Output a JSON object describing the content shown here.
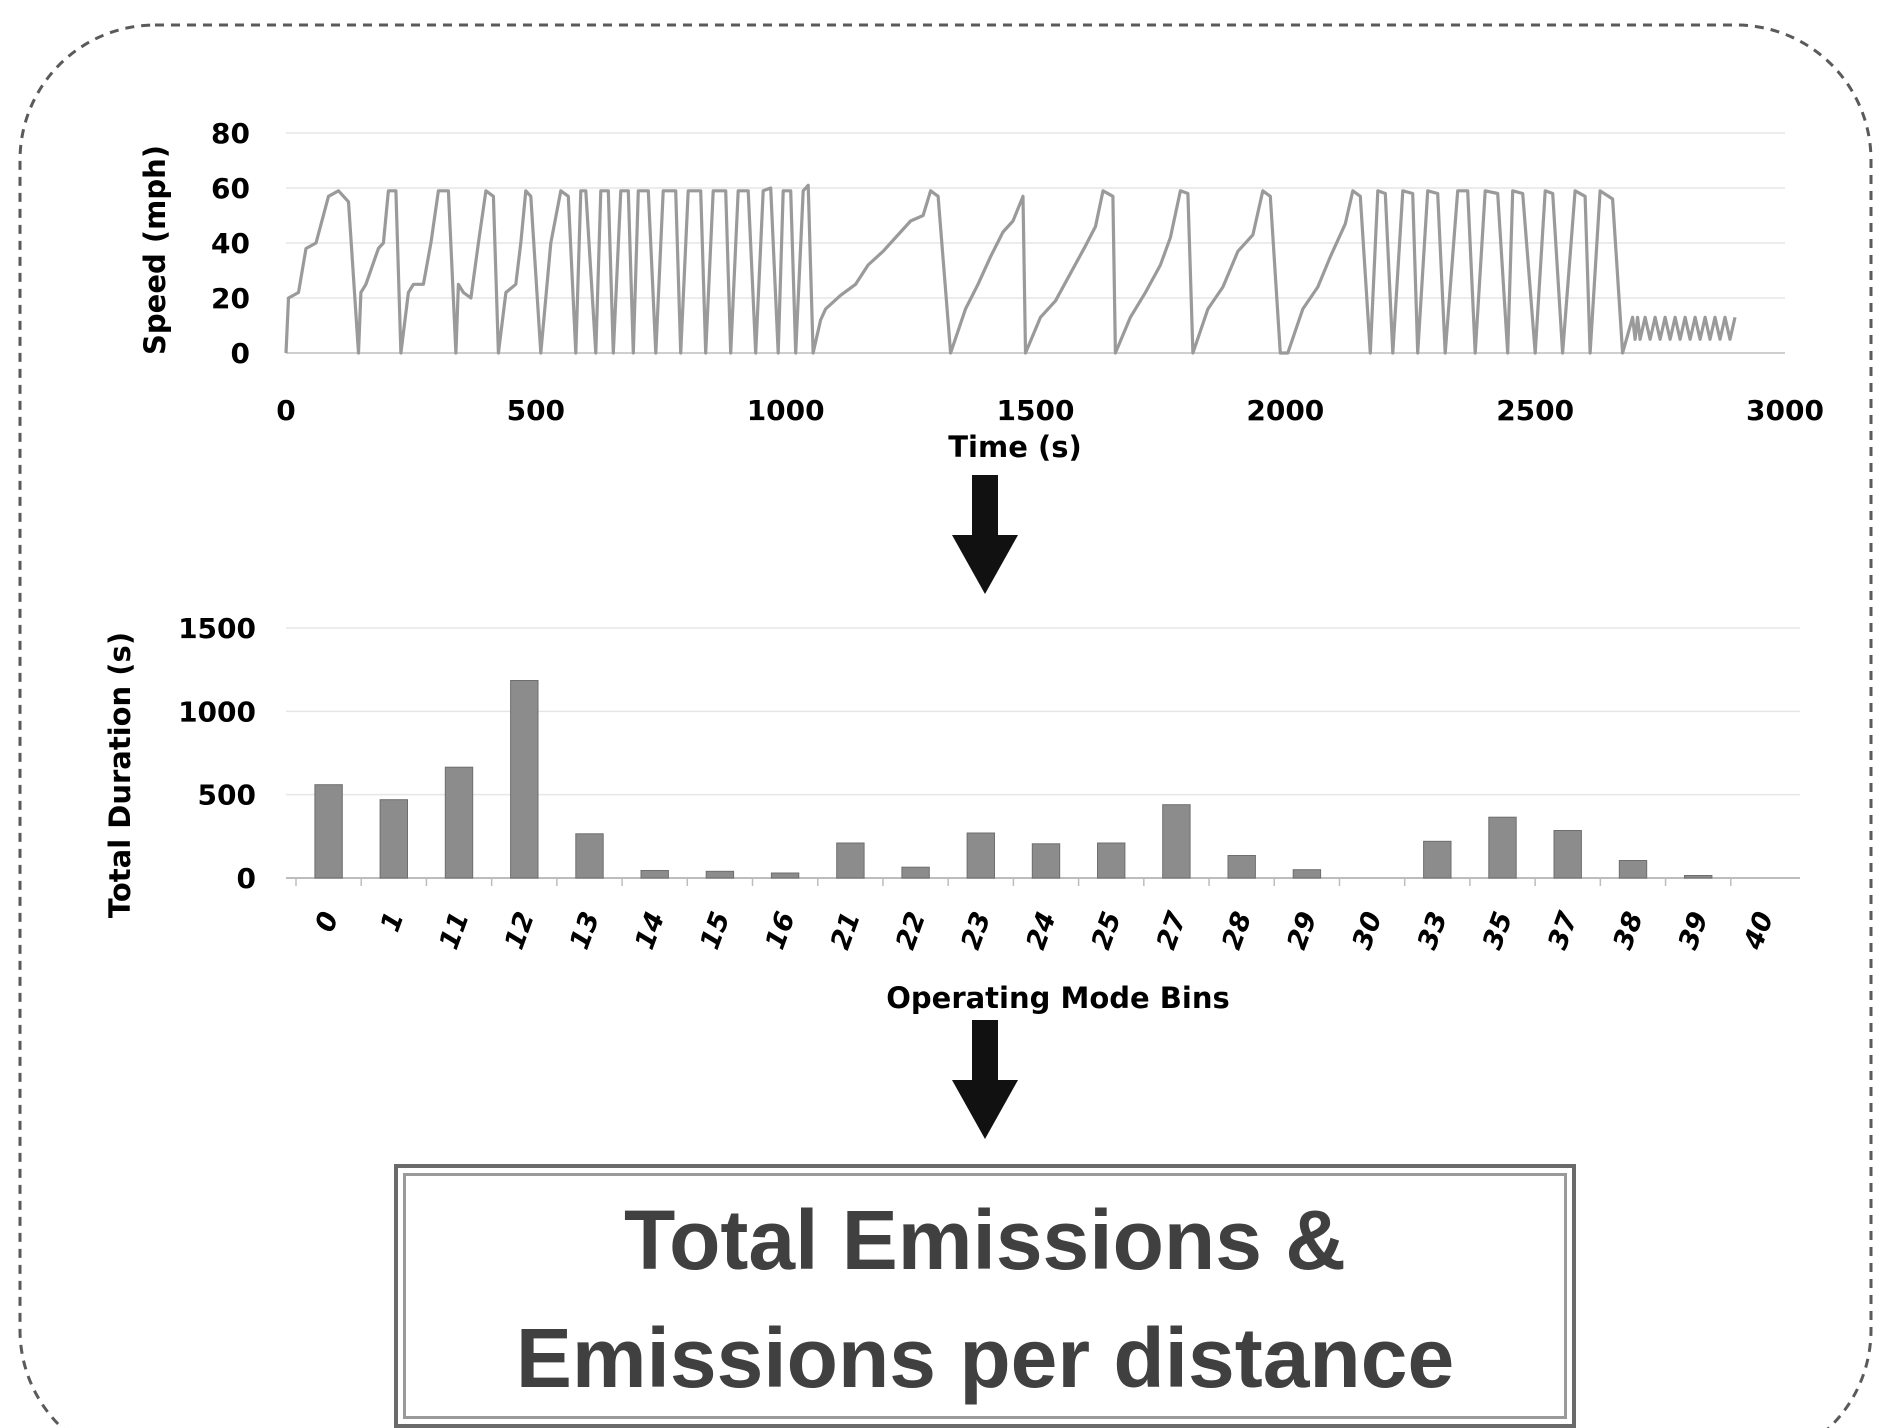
{
  "chart_data": [
    {
      "type": "line",
      "xlabel": "Time (s)",
      "ylabel": "Speed (mph)",
      "xlim": [
        0,
        3000
      ],
      "ylim": [
        0,
        80
      ],
      "x_ticks": [
        "0",
        "500",
        "1000",
        "1500",
        "2000",
        "2500",
        "3000"
      ],
      "y_ticks": [
        "0",
        "20",
        "40",
        "60",
        "80"
      ],
      "grid": true,
      "line_color": "#9a9a9a",
      "series": [
        {
          "x": [
            0,
            5,
            25,
            40,
            60,
            85,
            105,
            125,
            145,
            150,
            160,
            185,
            195,
            205,
            220,
            230,
            245,
            255,
            275,
            290,
            305,
            325,
            340,
            345,
            355,
            370,
            385,
            400,
            415,
            425,
            440,
            460,
            470,
            480,
            490,
            510,
            530,
            550,
            565,
            580,
            590,
            600,
            620,
            630,
            645,
            655,
            670,
            685,
            695,
            705,
            725,
            740,
            755,
            780,
            790,
            805,
            830,
            840,
            855,
            880,
            890,
            905,
            925,
            940,
            955,
            970,
            985,
            995,
            1010,
            1020,
            1035,
            1045,
            1055,
            1070,
            1080,
            1110,
            1140,
            1165,
            1195,
            1220,
            1250,
            1275,
            1290,
            1305,
            1330,
            1360,
            1385,
            1410,
            1435,
            1455,
            1475,
            1480,
            1510,
            1540,
            1570,
            1600,
            1620,
            1635,
            1655,
            1660,
            1690,
            1720,
            1750,
            1770,
            1790,
            1805,
            1815,
            1845,
            1875,
            1905,
            1935,
            1955,
            1970,
            1990,
            2005,
            2035,
            2065,
            2090,
            2120,
            2135,
            2150,
            2170,
            2185,
            2200,
            2215,
            2235,
            2255,
            2265,
            2285,
            2305,
            2320,
            2345,
            2365,
            2380,
            2400,
            2425,
            2445,
            2455,
            2475,
            2500,
            2520,
            2535,
            2555,
            2580,
            2600,
            2610,
            2630,
            2655,
            2675,
            2695,
            2700,
            2705,
            2710,
            2720,
            2730,
            2740,
            2750,
            2760,
            2770,
            2780,
            2790,
            2800,
            2810,
            2820,
            2830,
            2840,
            2850,
            2860,
            2870,
            2880,
            2890,
            2900
          ],
          "y": [
            0,
            20,
            22,
            38,
            40,
            57,
            59,
            55,
            0,
            22,
            25,
            38,
            40,
            59,
            59,
            0,
            22,
            25,
            25,
            40,
            59,
            59,
            0,
            25,
            22,
            20,
            40,
            59,
            57,
            0,
            22,
            25,
            40,
            59,
            57,
            0,
            40,
            59,
            57,
            0,
            59,
            59,
            0,
            59,
            59,
            0,
            59,
            59,
            0,
            59,
            59,
            0,
            59,
            59,
            0,
            59,
            59,
            0,
            59,
            59,
            0,
            59,
            59,
            0,
            59,
            60,
            0,
            59,
            59,
            0,
            59,
            61,
            0,
            12,
            16,
            21,
            25,
            32,
            37,
            42,
            48,
            50,
            59,
            57,
            0,
            16,
            25,
            35,
            44,
            48,
            57,
            0,
            13,
            19,
            29,
            39,
            46,
            59,
            57,
            0,
            13,
            22,
            32,
            42,
            59,
            58,
            0,
            16,
            24,
            37,
            43,
            59,
            57,
            0,
            0,
            16,
            24,
            35,
            47,
            59,
            57,
            0,
            59,
            58,
            0,
            59,
            58,
            0,
            59,
            58,
            0,
            59,
            59,
            0,
            59,
            58,
            0,
            59,
            58,
            0,
            59,
            58,
            0,
            59,
            57,
            0,
            59,
            56,
            0,
            13,
            5,
            13,
            5,
            13,
            5,
            13,
            5,
            13,
            5,
            13,
            5,
            13,
            5,
            13,
            5,
            13,
            5,
            13,
            5,
            13,
            5,
            13
          ]
        }
      ]
    },
    {
      "type": "bar",
      "xlabel": "Operating Mode Bins",
      "ylabel": "Total Duration (s)",
      "ylim": [
        0,
        1500
      ],
      "y_ticks": [
        "0",
        "500",
        "1000",
        "1500"
      ],
      "grid": true,
      "bar_color": "#8c8c8c",
      "categories": [
        "0",
        "1",
        "11",
        "12",
        "13",
        "14",
        "15",
        "16",
        "21",
        "22",
        "23",
        "24",
        "25",
        "27",
        "28",
        "29",
        "30",
        "33",
        "35",
        "37",
        "38",
        "39",
        "40"
      ],
      "values": [
        560,
        470,
        665,
        1185,
        265,
        45,
        40,
        30,
        210,
        65,
        270,
        205,
        210,
        440,
        135,
        50,
        0,
        220,
        365,
        285,
        105,
        15,
        0
      ]
    }
  ],
  "result_box": {
    "text": "Total Emissions &\nEmissions per distance"
  }
}
